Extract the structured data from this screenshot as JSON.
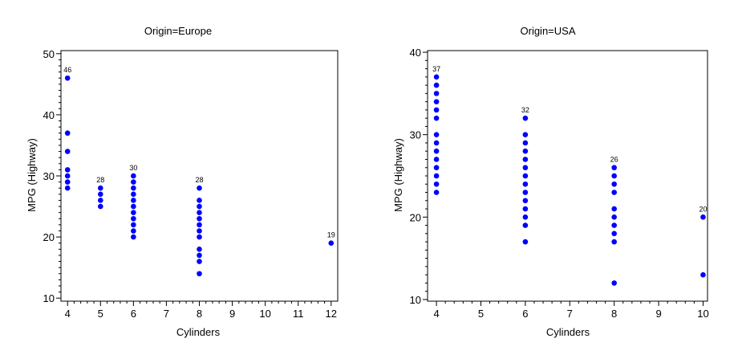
{
  "chart_data": [
    {
      "type": "scatter",
      "title": "Origin=Europe",
      "xlabel": "Cylinders",
      "ylabel": "MPG (Highway)",
      "xlim": [
        3.8,
        12.2
      ],
      "ylim": [
        9.5,
        50.5
      ],
      "xticks": [
        4,
        5,
        6,
        7,
        8,
        9,
        10,
        11,
        12
      ],
      "yticks": [
        10,
        20,
        30,
        40,
        50
      ],
      "minor_x_step": 0.2,
      "minor_y_step": 1,
      "grid": false,
      "series": [
        {
          "color": "#0000ff",
          "points": [
            [
              4,
              28
            ],
            [
              4,
              29
            ],
            [
              4,
              30
            ],
            [
              4,
              31
            ],
            [
              4,
              34
            ],
            [
              4,
              37
            ],
            [
              4,
              46
            ],
            [
              5,
              25
            ],
            [
              5,
              26
            ],
            [
              5,
              27
            ],
            [
              5,
              28
            ],
            [
              6,
              20
            ],
            [
              6,
              21
            ],
            [
              6,
              22
            ],
            [
              6,
              23
            ],
            [
              6,
              24
            ],
            [
              6,
              25
            ],
            [
              6,
              26
            ],
            [
              6,
              27
            ],
            [
              6,
              28
            ],
            [
              6,
              29
            ],
            [
              6,
              30
            ],
            [
              8,
              14
            ],
            [
              8,
              16
            ],
            [
              8,
              17
            ],
            [
              8,
              18
            ],
            [
              8,
              20
            ],
            [
              8,
              21
            ],
            [
              8,
              22
            ],
            [
              8,
              23
            ],
            [
              8,
              24
            ],
            [
              8,
              25
            ],
            [
              8,
              26
            ],
            [
              8,
              28
            ],
            [
              12,
              19
            ]
          ]
        }
      ],
      "annotations": [
        {
          "x": 4,
          "y": 46,
          "label": "46"
        },
        {
          "x": 5,
          "y": 28,
          "label": "28"
        },
        {
          "x": 6,
          "y": 30,
          "label": "30"
        },
        {
          "x": 8,
          "y": 28,
          "label": "28"
        },
        {
          "x": 12,
          "y": 19,
          "label": "19"
        }
      ]
    },
    {
      "type": "scatter",
      "title": "Origin=USA",
      "xlabel": "Cylinders",
      "ylabel": "MPG (Highway)",
      "xlim": [
        3.8,
        10.1
      ],
      "ylim": [
        9.8,
        40.2
      ],
      "xticks": [
        4,
        5,
        6,
        7,
        8,
        9,
        10
      ],
      "yticks": [
        10,
        20,
        30,
        40
      ],
      "minor_x_step": 0.2,
      "minor_y_step": 1,
      "grid": false,
      "series": [
        {
          "color": "#0000ff",
          "points": [
            [
              4,
              23
            ],
            [
              4,
              24
            ],
            [
              4,
              25
            ],
            [
              4,
              26
            ],
            [
              4,
              27
            ],
            [
              4,
              28
            ],
            [
              4,
              29
            ],
            [
              4,
              30
            ],
            [
              4,
              32
            ],
            [
              4,
              33
            ],
            [
              4,
              34
            ],
            [
              4,
              35
            ],
            [
              4,
              36
            ],
            [
              4,
              37
            ],
            [
              6,
              17
            ],
            [
              6,
              19
            ],
            [
              6,
              20
            ],
            [
              6,
              21
            ],
            [
              6,
              22
            ],
            [
              6,
              23
            ],
            [
              6,
              24
            ],
            [
              6,
              25
            ],
            [
              6,
              26
            ],
            [
              6,
              27
            ],
            [
              6,
              28
            ],
            [
              6,
              29
            ],
            [
              6,
              30
            ],
            [
              6,
              32
            ],
            [
              8,
              12
            ],
            [
              8,
              17
            ],
            [
              8,
              18
            ],
            [
              8,
              19
            ],
            [
              8,
              20
            ],
            [
              8,
              21
            ],
            [
              8,
              23
            ],
            [
              8,
              24
            ],
            [
              8,
              25
            ],
            [
              8,
              26
            ],
            [
              10,
              13
            ],
            [
              10,
              20
            ]
          ]
        }
      ],
      "annotations": [
        {
          "x": 4,
          "y": 37,
          "label": "37"
        },
        {
          "x": 6,
          "y": 32,
          "label": "32"
        },
        {
          "x": 8,
          "y": 26,
          "label": "26"
        },
        {
          "x": 10,
          "y": 20,
          "label": "20"
        }
      ]
    }
  ]
}
